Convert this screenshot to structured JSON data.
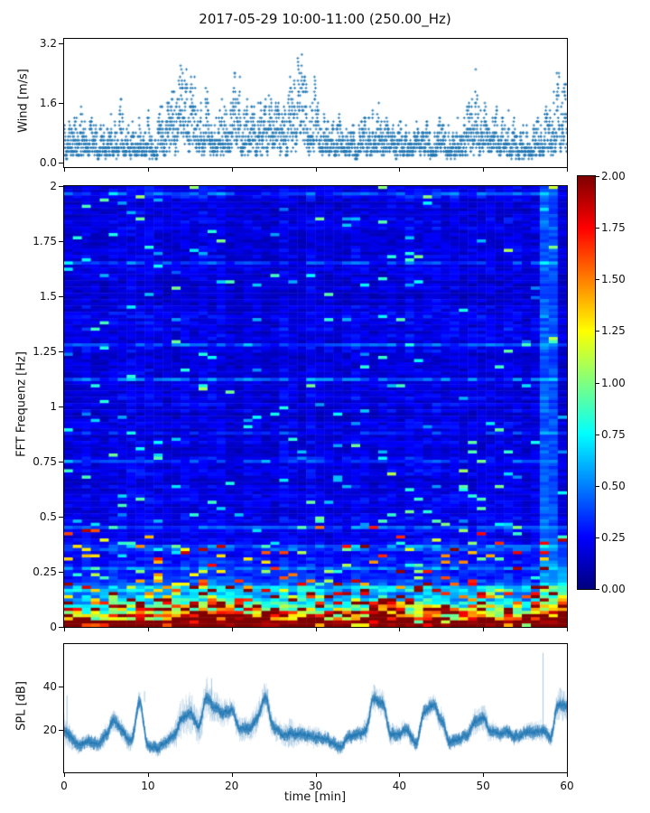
{
  "title": "2017-05-29 10:00-11:00 (250.00_Hz)",
  "colors": {
    "scatter_marker": "#1f77b4",
    "spl_line": "#1f77b4",
    "axis_text": "#111111",
    "spine": "#000000",
    "background": "#ffffff"
  },
  "chart_data": [
    {
      "type": "scatter",
      "name": "wind-speed",
      "ylabel": "Wind [m/s]",
      "yticks": [
        0.0,
        1.6,
        3.2
      ],
      "ytick_labels": [
        "0.0",
        "1.6",
        "3.2"
      ],
      "ylim": [
        -0.12,
        3.32
      ],
      "xlim": [
        0,
        60
      ],
      "marker": "plus",
      "marker_color": "#1f77b4",
      "points_per_minute": 60,
      "value_quantization": 0.1,
      "minute_base": [
        0.3,
        0.3,
        0.4,
        0.3,
        0.3,
        0.4,
        0.4,
        0.4,
        0.3,
        0.4,
        0.4,
        0.3,
        0.4,
        0.5,
        0.7,
        0.8,
        0.6,
        0.7,
        0.6,
        0.5,
        0.7,
        0.6,
        0.5,
        0.4,
        0.6,
        0.5,
        0.4,
        0.7,
        0.8,
        0.7,
        0.6,
        0.5,
        0.3,
        0.4,
        0.3,
        0.3,
        0.4,
        0.4,
        0.5,
        0.4,
        0.3,
        0.4,
        0.4,
        0.3,
        0.4,
        0.4,
        0.3,
        0.3,
        0.4,
        0.6,
        0.5,
        0.4,
        0.4,
        0.4,
        0.3,
        0.3,
        0.3,
        0.4,
        0.4,
        0.6
      ],
      "minute_max": [
        1.1,
        1.3,
        1.7,
        1.2,
        1.4,
        1.6,
        1.5,
        1.9,
        1.4,
        2.0,
        1.5,
        1.3,
        1.9,
        2.4,
        2.8,
        2.7,
        2.4,
        2.5,
        2.3,
        2.1,
        2.8,
        2.6,
        1.9,
        1.6,
        2.3,
        1.9,
        1.5,
        2.9,
        3.2,
        2.7,
        2.3,
        1.9,
        1.2,
        1.4,
        1.1,
        1.3,
        1.5,
        1.4,
        2.0,
        1.4,
        1.2,
        1.3,
        1.4,
        1.2,
        1.5,
        1.3,
        1.2,
        1.3,
        1.5,
        2.9,
        2.1,
        1.7,
        1.4,
        1.5,
        1.3,
        1.1,
        1.3,
        1.5,
        1.6,
        2.8
      ]
    },
    {
      "type": "heatmap",
      "name": "fft-spectrogram",
      "ylabel": "FFT Frequenz [Hz]",
      "yticks": [
        0,
        0.25,
        0.5,
        0.75,
        1,
        1.25,
        1.5,
        1.75,
        2
      ],
      "ytick_labels": [
        "0",
        "0.25",
        "0.5",
        "0.75",
        "1",
        "1.25",
        "1.5",
        "1.75",
        "2"
      ],
      "ylim": [
        0,
        2
      ],
      "xlim": [
        0,
        60
      ],
      "colormap": "jet",
      "clim": [
        0,
        2
      ],
      "grid": {
        "cols": 56,
        "rows": 140
      },
      "minute_intensity": [
        0.6,
        0.6,
        0.6,
        0.6,
        0.6,
        0.65,
        0.7,
        0.65,
        0.6,
        0.75,
        0.6,
        0.6,
        0.65,
        0.75,
        0.85,
        0.9,
        0.8,
        0.95,
        0.9,
        0.85,
        0.9,
        0.8,
        0.75,
        0.85,
        0.9,
        0.8,
        0.7,
        0.8,
        0.85,
        0.8,
        0.75,
        0.7,
        0.6,
        0.6,
        0.6,
        0.65,
        0.7,
        0.85,
        0.85,
        0.7,
        0.65,
        0.7,
        0.6,
        0.8,
        0.85,
        0.7,
        0.6,
        0.6,
        0.65,
        0.75,
        0.8,
        0.7,
        0.65,
        0.65,
        0.6,
        0.6,
        0.7,
        0.9,
        0.7,
        0.95
      ],
      "features": {
        "strong_low_band": "frequencies below ~0.05 Hz saturated near 2.0 (dark red) across full hour",
        "bright_column": {
          "t_start": 56.5,
          "t_end": 58.7,
          "boost": 0.22
        },
        "last_column_low_freq_boost": 0.55
      },
      "colorbar": {
        "ticks": [
          0,
          0.25,
          0.5,
          0.75,
          1,
          1.25,
          1.5,
          1.75,
          2
        ],
        "tick_labels": [
          "0.00",
          "0.25",
          "0.50",
          "0.75",
          "1.00",
          "1.25",
          "1.50",
          "1.75",
          "2.00"
        ]
      }
    },
    {
      "type": "line",
      "name": "spl",
      "ylabel": "SPL [dB]",
      "xlabel": "time [min]",
      "yticks": [
        20,
        40
      ],
      "ytick_labels": [
        "20",
        "40"
      ],
      "ylim": [
        0,
        60
      ],
      "xticks": [
        0,
        10,
        20,
        30,
        40,
        50,
        60
      ],
      "xtick_labels": [
        "0",
        "10",
        "20",
        "30",
        "40",
        "50",
        "60"
      ],
      "xlim": [
        0,
        60
      ],
      "line_color": "#1f77b4",
      "minute_mean": [
        20,
        16,
        12,
        12,
        13,
        18,
        25,
        20,
        15,
        33,
        12,
        12,
        13,
        16,
        24,
        27,
        21,
        36,
        31,
        29,
        29,
        19,
        21,
        27,
        34,
        21,
        17,
        18,
        19,
        19,
        18,
        15,
        13,
        12,
        16,
        17,
        20,
        33,
        32,
        18,
        18,
        20,
        14,
        30,
        33,
        24,
        16,
        16,
        17,
        23,
        26,
        19,
        18,
        19,
        18,
        19,
        18,
        19,
        16,
        31
      ],
      "minute_fuzz": [
        6,
        4,
        3,
        3,
        3,
        4,
        4,
        4,
        4,
        4,
        3,
        3,
        3,
        4,
        8,
        8,
        6,
        8,
        6,
        5,
        5,
        5,
        5,
        6,
        6,
        5,
        4,
        6,
        4,
        4,
        4,
        3,
        3,
        3,
        3,
        3,
        5,
        5,
        5,
        4,
        4,
        4,
        3,
        4,
        4,
        5,
        3,
        3,
        3,
        5,
        5,
        4,
        3,
        3,
        3,
        3,
        4,
        4,
        3,
        6
      ],
      "spikes": [
        {
          "t": 0.35,
          "value": 36
        },
        {
          "t": 9.6,
          "value": 38
        },
        {
          "t": 17.6,
          "value": 44
        },
        {
          "t": 24.3,
          "value": 39
        },
        {
          "t": 57.15,
          "value": 56
        },
        {
          "t": 59.6,
          "value": 38
        }
      ]
    }
  ]
}
